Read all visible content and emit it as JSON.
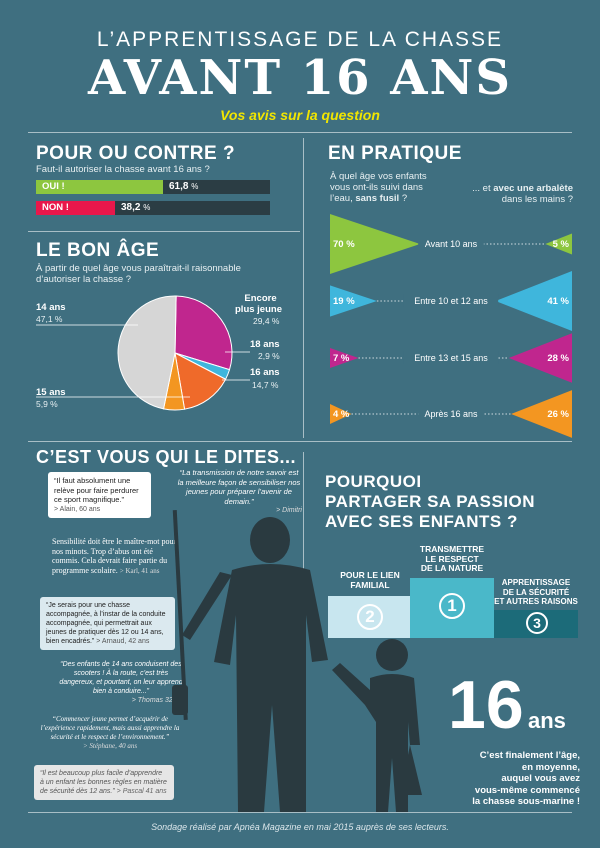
{
  "header": {
    "kicker": "L’APPRENTISSAGE DE LA CHASSE",
    "title": "AVANT 16 ANS",
    "subtitle": "Vos avis sur la question"
  },
  "colors": {
    "background": "#3f6f80",
    "green": "#8dc63f",
    "red": "#e8174b",
    "purple": "#c0268e",
    "cyan": "#3fb6dc",
    "orange": "#f39621",
    "yellow": "#f2e600",
    "gray": "#d6d6d6",
    "dark": "#2b3d44"
  },
  "pour": {
    "title": "POUR OU CONTRE ?",
    "question": "Faut-il autoriser la chasse avant 16 ans ?",
    "pct_sign": "%"
  },
  "age": {
    "title": "LE BON ÂGE",
    "question": "À partir de quel âge vous paraîtrait-il raisonnable d’autoriser la chasse ?",
    "labels": {
      "encore": "Encore",
      "plus_jeune": "plus jeune",
      "encore_val": "29,4 %",
      "l14": "14 ans",
      "l14_val": "47,1 %",
      "l18": "18 ans",
      "l18_val": "2,9 %",
      "l16": "16 ans",
      "l16_val": "14,7 %",
      "l15": "15 ans",
      "l15_val": "5,9 %"
    }
  },
  "pratique": {
    "title": "EN PRATIQUE",
    "q_left_1": "À quel âge vos enfants",
    "q_left_2": "vous ont-ils suivi dans",
    "q_left_3": "l’eau,",
    "q_left_bold": "sans fusil",
    "q_left_end": " ?",
    "q_right_1": "... et",
    "q_right_bold": "avec une arbalète",
    "q_right_2": "dans les mains ?"
  },
  "temoignages": {
    "title": "C’EST VOUS QUI LE DITES...",
    "q1": "“Il faut absolument une relève pour faire perdurer ce sport magnifique.”",
    "q1_sig": "> Alain, 60 ans",
    "q2": "“La transmission de notre savoir est la meilleure façon de sensibiliser nos jeunes pour préparer l’avenir de demain.”",
    "q2_sig": "> Dimitri",
    "q3": "Sensibilité doit être le maître-mot pour nos minots. Trop d’abus ont été commis. Cela devrait faire partie du programme scolaire.",
    "q3_sig": "> Karl, 41 ans",
    "q4": "“Je serais pour une chasse accompagnée, à l’instar de la conduite accompagnée, qui permettrait aux jeunes de pratiquer dès 12 ou 14 ans, bien encadrés.”",
    "q4_sig": "> Arnaud, 42 ans",
    "q5": "“Des enfants de 14 ans conduisent des scooters ! À la route, c’est très dangereux, et pourtant, on leur apprend bien à conduire...”",
    "q5_sig": "> Thomas 32 ans",
    "q6": "“Commencer jeune permet d’acquérir de l’expérience rapidement, mais aussi apprendre la sécurité et le respect de l’environnement.”",
    "q6_sig": "> Stéphane, 40 ans",
    "q7": "“Il est beaucoup plus facile d’apprendre à un enfant les bonnes règles en matière de sécurité dès 12 ans.”",
    "q7_sig": "> Pascal 41 ans"
  },
  "passion": {
    "title_1": "POURQUOI",
    "title_2": "PARTAGER SA PASSION",
    "title_3": "AVEC SES ENFANTS ?",
    "p1_label_1": "TRANSMETTRE",
    "p1_label_2": "LE RESPECT",
    "p1_label_3": "DE LA NATURE",
    "p1_num": "1",
    "p2_label_1": "POUR LE LIEN",
    "p2_label_2": "FAMILIAL",
    "p2_num": "2",
    "p3_label_1": "APPRENTISSAGE",
    "p3_label_2": "DE LA SÉCURITÉ",
    "p3_label_3": "ET AUTRES RAISONS",
    "p3_num": "3"
  },
  "seize": {
    "number": "16",
    "unit": "ans",
    "text_1": "C’est finalement l’âge,",
    "text_2": "en moyenne,",
    "text_3": "auquel vous avez",
    "text_4": "vous-même commencé",
    "text_5": "la chasse sous-marine !"
  },
  "footer": {
    "source": "Sondage réalisé par Apnéa Magazine en mai 2015 auprès de ses lecteurs."
  },
  "chart_data": [
    {
      "type": "bar",
      "title": "POUR OU CONTRE ?",
      "categories": [
        "OUI !",
        "NON !"
      ],
      "values": [
        61.8,
        38.2
      ],
      "value_labels": [
        "61,8",
        "38,2"
      ],
      "ylim": [
        0,
        100
      ]
    },
    {
      "type": "pie",
      "title": "LE BON ÂGE",
      "categories": [
        "Encore plus jeune",
        "18 ans",
        "16 ans",
        "15 ans",
        "14 ans"
      ],
      "values": [
        29.4,
        2.9,
        14.7,
        5.9,
        47.1
      ]
    },
    {
      "type": "bar",
      "title": "EN PRATIQUE",
      "categories": [
        "Avant 10 ans",
        "Entre 10 et 12 ans",
        "Entre 13 et 15 ans",
        "Après 16 ans"
      ],
      "series": [
        {
          "name": "sans fusil",
          "values": [
            70,
            19,
            7,
            4
          ],
          "labels": [
            "70 %",
            "19 %",
            "7 %",
            "4 %"
          ]
        },
        {
          "name": "avec une arbalète",
          "values": [
            5,
            41,
            28,
            26
          ],
          "labels": [
            "5 %",
            "41 %",
            "28 %",
            "26 %"
          ]
        }
      ]
    }
  ]
}
